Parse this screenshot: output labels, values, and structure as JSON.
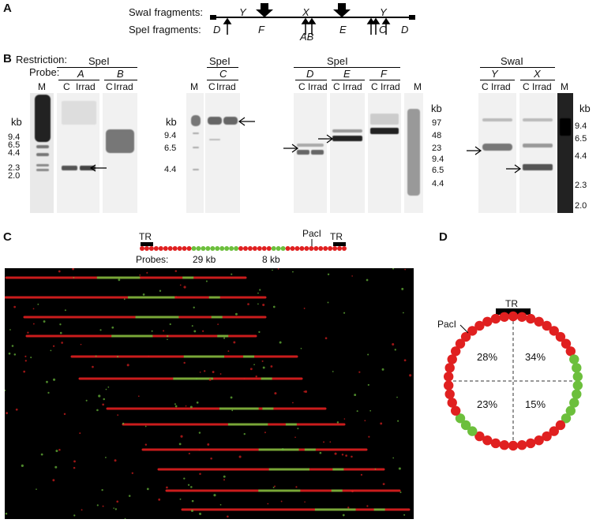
{
  "panels": {
    "a": "A",
    "b": "B",
    "c": "C",
    "d": "D"
  },
  "panelA": {
    "swai_label": "SwaI fragments:",
    "spei_label": "SpeI fragments:",
    "swai_fragments": [
      "Y",
      "X",
      "Y"
    ],
    "spei_fragments": [
      "D",
      "F",
      "AB",
      "E",
      "C",
      "D"
    ]
  },
  "panelB": {
    "restriction_label": "Restriction:",
    "probe_label": "Probe:",
    "groups": [
      {
        "enzyme": "SpeI",
        "probes": [
          "A",
          "B"
        ]
      },
      {
        "enzyme": "SpeI",
        "probes": [
          "C"
        ]
      },
      {
        "enzyme": "SpeI",
        "probes": [
          "D",
          "E",
          "F"
        ]
      },
      {
        "enzyme": "SwaI",
        "probes": [
          "Y",
          "X"
        ]
      }
    ],
    "lane_c": "C",
    "lane_irrad": "Irrad",
    "lane_m": "M",
    "kb": "kb",
    "markers_left": [
      "9.4",
      "6.5",
      "4.4",
      "2.3",
      "2.0"
    ],
    "markers_c": [
      "9.4",
      "6.5",
      "4.4"
    ],
    "markers_def": [
      "97",
      "48",
      "23",
      "9.4",
      "6.5",
      "4.4"
    ],
    "markers_swai": [
      "9.4",
      "6.5",
      "4.4",
      "2.3",
      "2.0"
    ]
  },
  "panelC": {
    "tr": "TR",
    "paci": "PacI",
    "probes_label": "Probes:",
    "probe_29": "29 kb",
    "probe_8": "8 kb",
    "colors": {
      "red": "#e02020",
      "green": "#6cbf3c"
    }
  },
  "panelD": {
    "tr": "TR",
    "paci": "PacI",
    "quadrants": [
      "28%",
      "34%",
      "23%",
      "15%"
    ]
  }
}
